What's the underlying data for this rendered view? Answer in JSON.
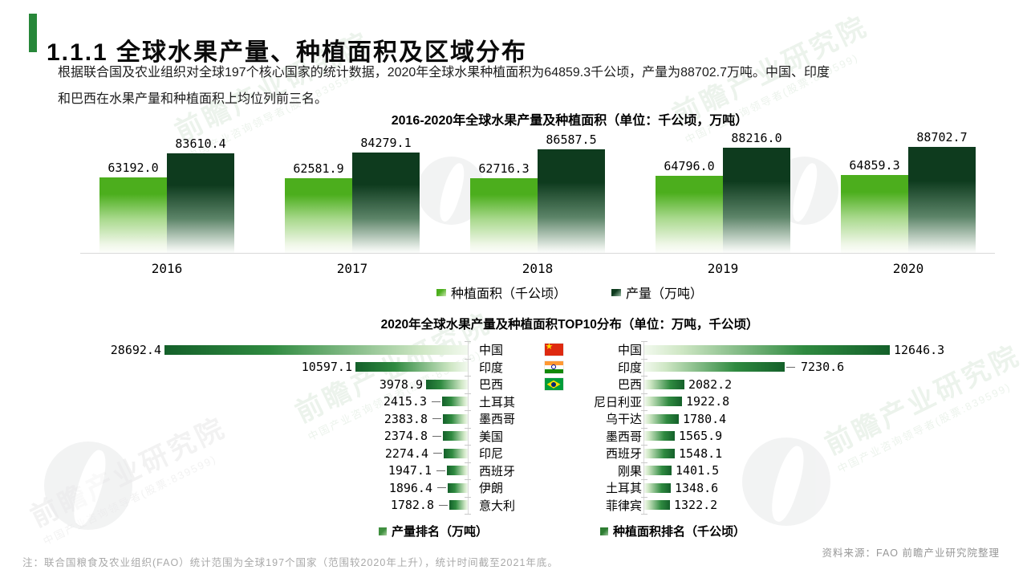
{
  "page": {
    "title": "1.1.1 全球水果产量、种植面积及区域分布",
    "intro_line1": "根据联合国及农业组织对全球197个核心国家的统计数据，2020年全球水果种植面积为64859.3千公顷，产量为88702.7万吨。中国、印度",
    "intro_line2": "和巴西在水果产量和种植面积上均位列前三名。",
    "note": "注：联合国粮食及农业组织(FAO）统计范围为全球197个国家（范围较2020年上升），统计时间截至2021年底。",
    "source": "资料来源：FAO 前瞻产业研究院整理",
    "watermark": {
      "brand": "前瞻产业研究院",
      "tagline": "中国产业咨询领导者(股票:839599)"
    }
  },
  "colors": {
    "accent_green": "#278739",
    "series_light_green": "#4cae1d",
    "series_dark_green": "#0e3b1e",
    "tornado_dark": "#14602a",
    "axis_gray": "#d8d8d8"
  },
  "chart_data": [
    {
      "type": "bar",
      "title": "2016-2020年全球水果产量及种植面积（单位：千公顷，万吨）",
      "categories": [
        "2016",
        "2017",
        "2018",
        "2019",
        "2020"
      ],
      "series": [
        {
          "name": "种植面积（千公顷）",
          "values": [
            63192.0,
            62581.9,
            62716.3,
            64796.0,
            64859.3
          ],
          "color": "#4cae1d"
        },
        {
          "name": "产量（万吨）",
          "values": [
            83610.4,
            84279.1,
            86587.5,
            88216.0,
            88702.7
          ],
          "color": "#0e3b1e"
        }
      ],
      "ylim": [
        0,
        95000
      ],
      "grid": false,
      "legend_position": "bottom",
      "value_labels": true
    },
    {
      "type": "bar",
      "orientation": "horizontal-mirrored",
      "title": "2020年全球水果产量及种植面积TOP10分布（单位：万吨，千公顷）",
      "left": {
        "name": "产量排名（万吨）",
        "categories": [
          "中国",
          "印度",
          "巴西",
          "土耳其",
          "墨西哥",
          "美国",
          "印尼",
          "西班牙",
          "伊朗",
          "意大利"
        ],
        "values": [
          28692.4,
          10597.1,
          3978.9,
          2415.3,
          2383.8,
          2374.8,
          2274.4,
          1947.1,
          1896.4,
          1782.8
        ],
        "leaders": [
          false,
          false,
          false,
          true,
          true,
          true,
          true,
          true,
          true,
          true
        ],
        "xmax": 30000
      },
      "right": {
        "name": "种植面积排名（千公顷）",
        "categories": [
          "中国",
          "印度",
          "巴西",
          "尼日利亚",
          "乌干达",
          "墨西哥",
          "西班牙",
          "刚果",
          "土耳其",
          "菲律宾"
        ],
        "values": [
          12646.3,
          7230.6,
          2082.2,
          1922.8,
          1780.4,
          1565.9,
          1548.1,
          1401.5,
          1348.6,
          1322.2
        ],
        "leaders": [
          false,
          true,
          false,
          false,
          false,
          false,
          false,
          false,
          false,
          false
        ],
        "xmax": 13000
      },
      "flags": [
        "cn",
        "in",
        "br"
      ],
      "legend_position": "bottom",
      "value_labels": true
    }
  ]
}
